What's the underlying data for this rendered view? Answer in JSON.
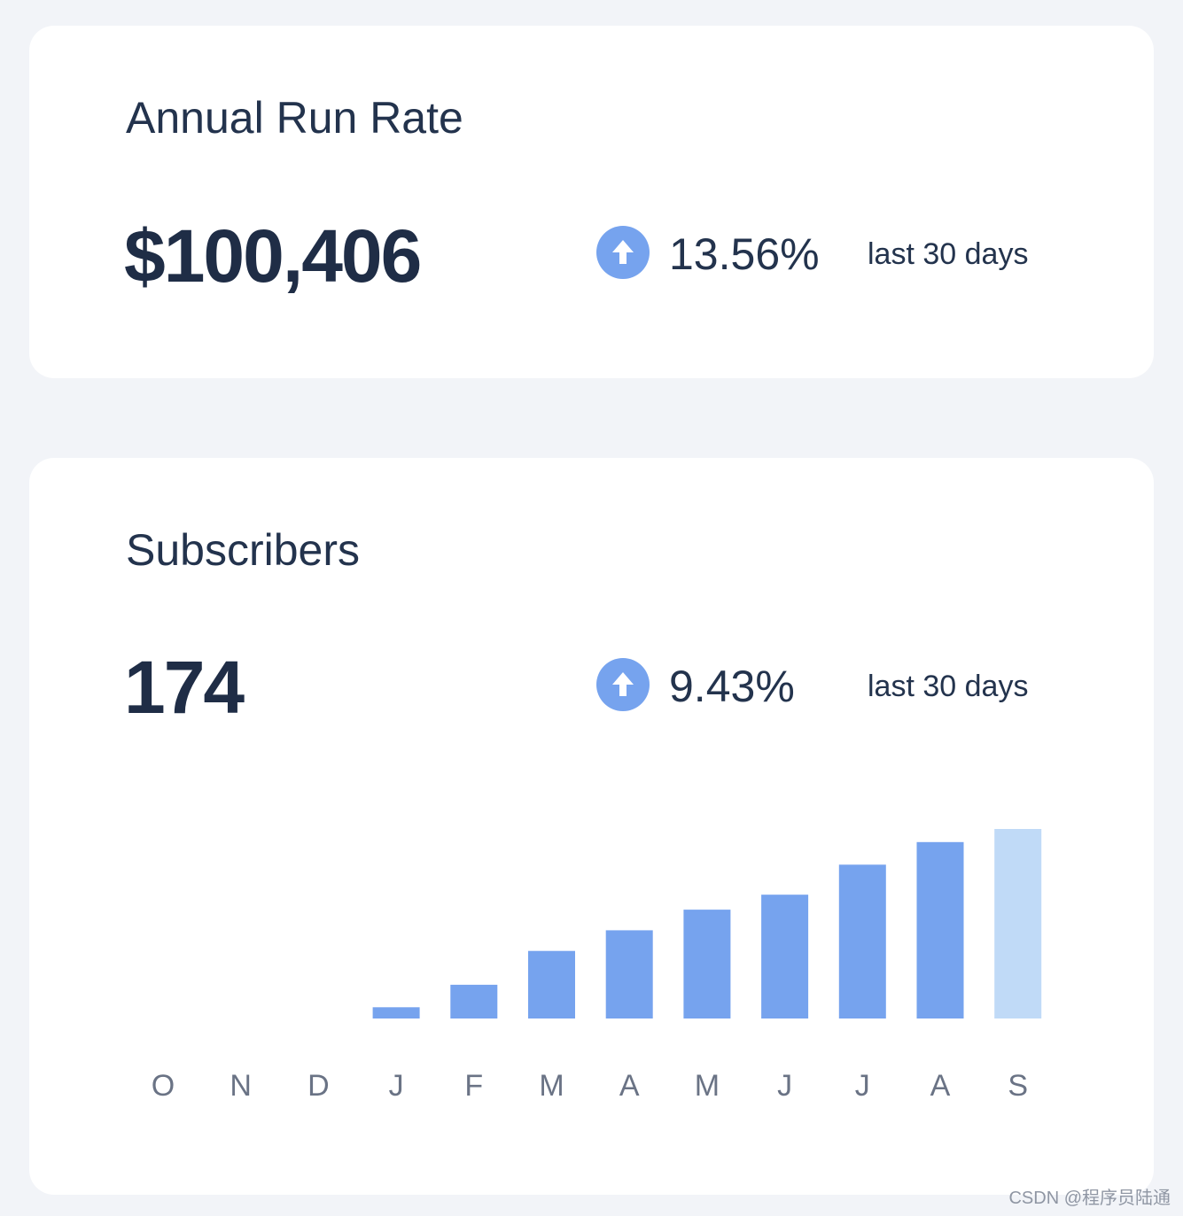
{
  "arr_card": {
    "title": "Annual Run Rate",
    "value": "$100,406",
    "change": "13.56%",
    "period": "last 30 days",
    "trend_icon": "arrow-up-circle-icon"
  },
  "subscribers_card": {
    "title": "Subscribers",
    "value": "174",
    "change": "9.43%",
    "period": "last 30 days",
    "trend_icon": "arrow-up-circle-icon"
  },
  "colors": {
    "bar": "#76a3ee",
    "bar_current": "#c0daf7",
    "icon": "#76a3ee",
    "tick_label": "#6a7385"
  },
  "watermark": "CSDN @程序员陆通",
  "chart_data": {
    "type": "bar",
    "categories": [
      "O",
      "N",
      "D",
      "J",
      "F",
      "M",
      "A",
      "M",
      "J",
      "J",
      "A",
      "S"
    ],
    "values": [
      0,
      0,
      0,
      6,
      18,
      36,
      47,
      58,
      66,
      82,
      94,
      101
    ],
    "highlighted_index": 11,
    "title": "",
    "xlabel": "",
    "ylabel": "",
    "ylim": [
      0,
      101
    ],
    "grid": false,
    "legend": "none"
  }
}
